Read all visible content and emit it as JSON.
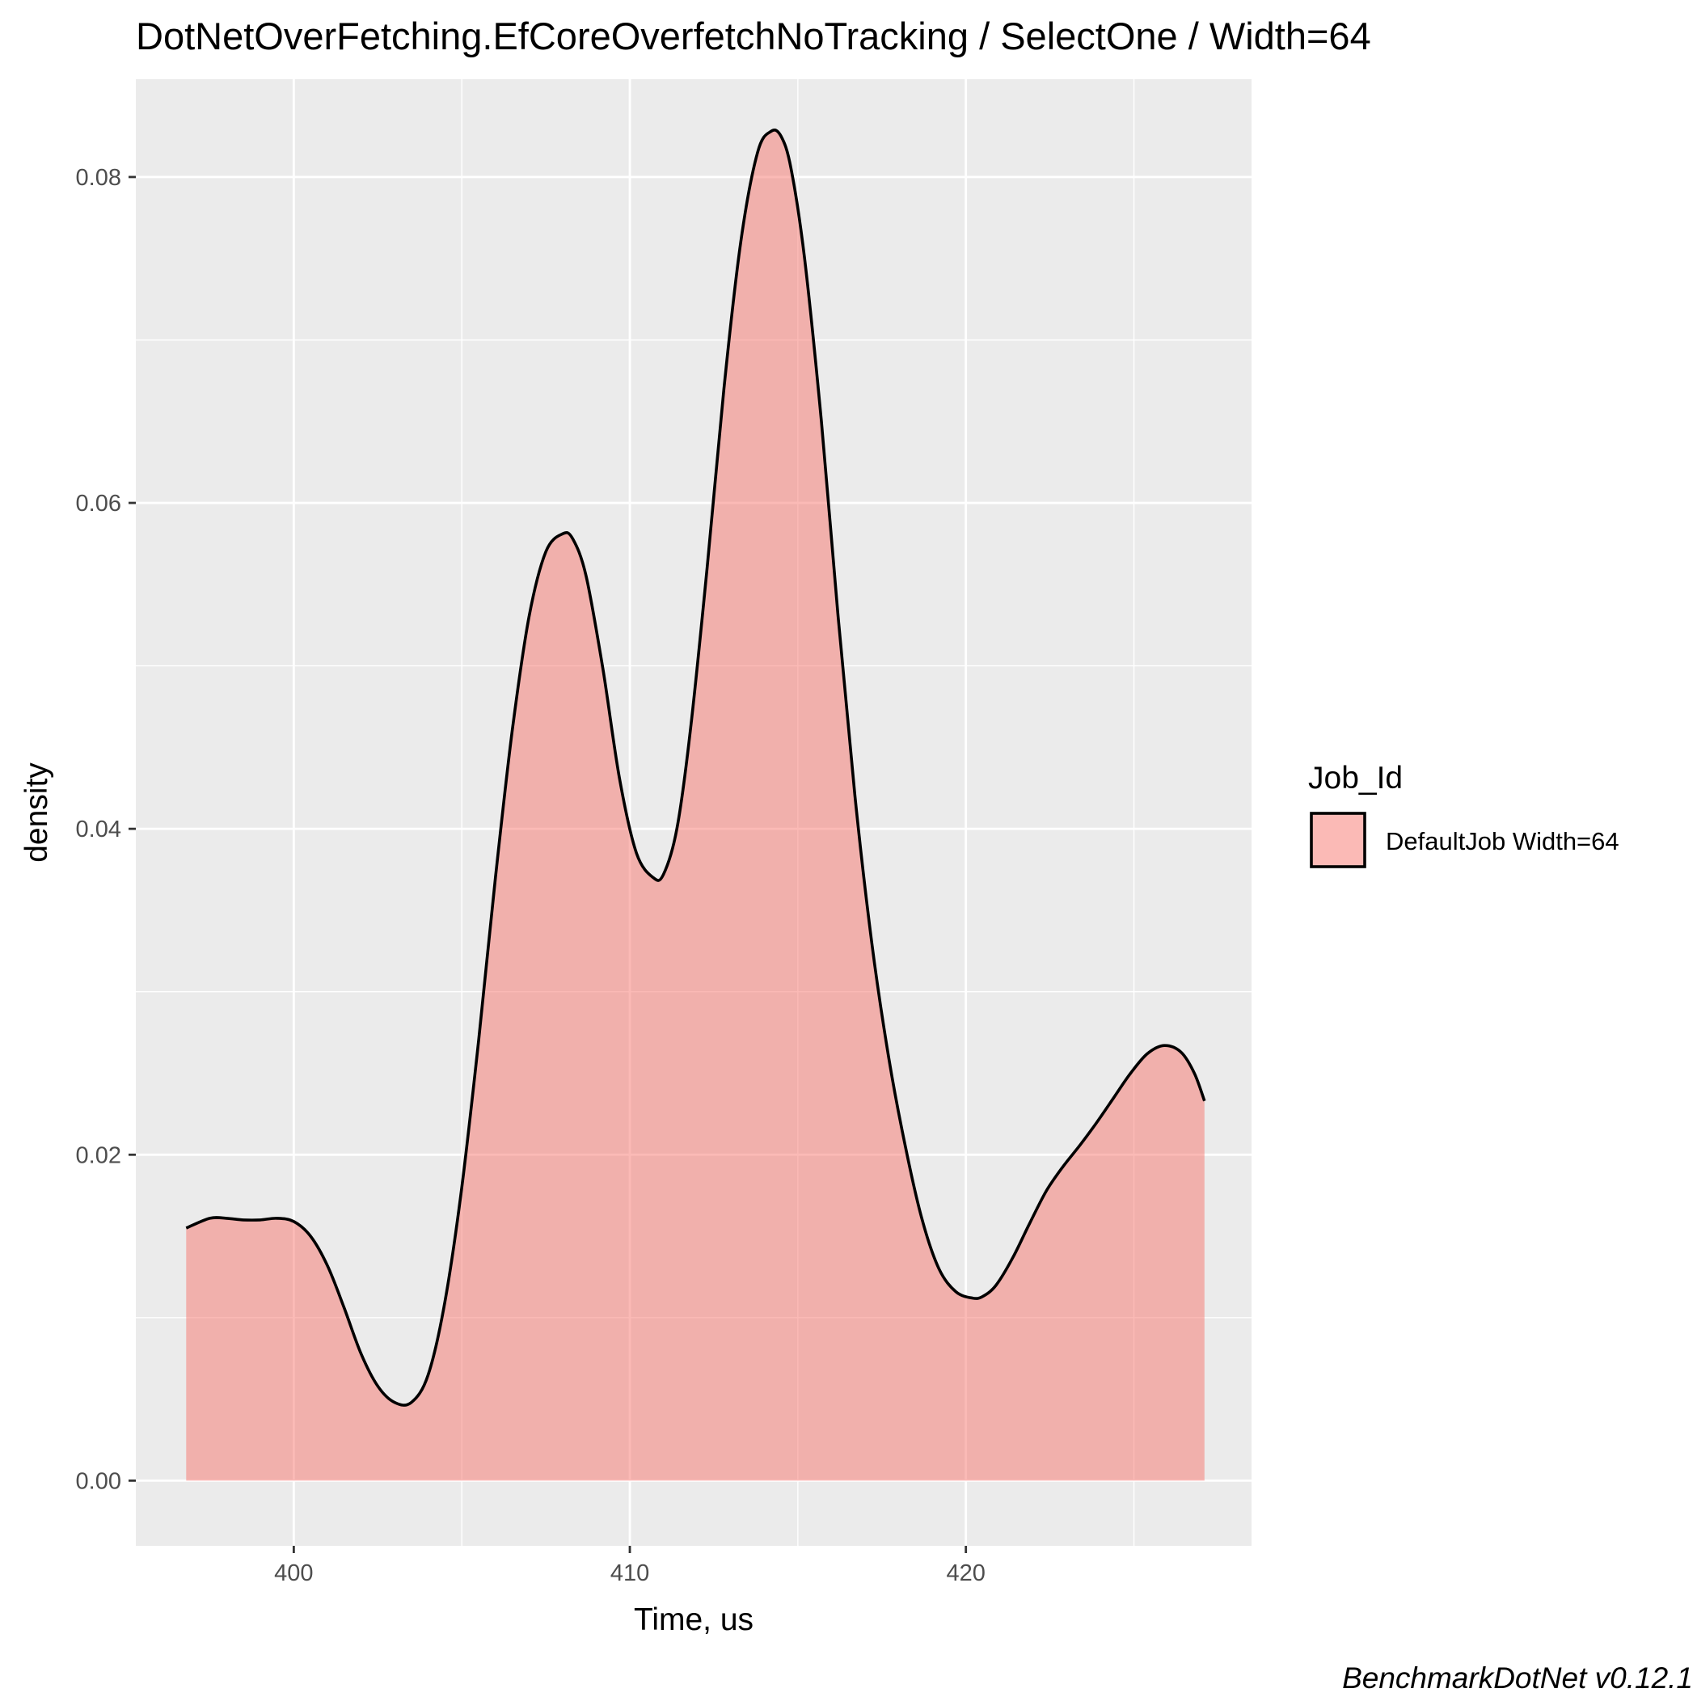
{
  "chart_data": {
    "type": "area",
    "title": "DotNetOverFetching.EfCoreOverfetchNoTracking / SelectOne / Width=64",
    "xlabel": "Time, us",
    "ylabel": "density",
    "xlim": [
      395.3,
      428.5
    ],
    "ylim": [
      -0.004,
      0.086
    ],
    "x_ticks": [
      400,
      410,
      420
    ],
    "x_tick_labels": [
      "400",
      "410",
      "420"
    ],
    "y_ticks": [
      0.0,
      0.02,
      0.04,
      0.06,
      0.08
    ],
    "y_tick_labels": [
      "0.00",
      "0.02",
      "0.04",
      "0.06",
      "0.08"
    ],
    "grid": true,
    "legend": {
      "title": "Job_Id",
      "position": "right",
      "entries": [
        {
          "label": "DefaultJob Width=64",
          "color": "#f8766d"
        }
      ]
    },
    "series": [
      {
        "name": "DefaultJob Width=64",
        "fill_color": "#f8766d",
        "fill_opacity": 0.5,
        "line_color": "#000000",
        "x": [
          396.8,
          397.5,
          398.0,
          398.5,
          399.0,
          399.5,
          400.0,
          400.5,
          401.0,
          401.5,
          402.0,
          402.5,
          403.0,
          403.5,
          404.0,
          404.5,
          405.0,
          405.5,
          406.0,
          406.5,
          407.0,
          407.5,
          408.0,
          408.3,
          408.7,
          409.2,
          409.7,
          410.2,
          410.7,
          411.0,
          411.4,
          411.8,
          412.3,
          412.8,
          413.3,
          413.8,
          414.2,
          414.5,
          414.8,
          415.2,
          415.7,
          416.2,
          416.7,
          417.2,
          417.7,
          418.2,
          418.7,
          419.2,
          419.7,
          420.2,
          420.5,
          420.9,
          421.4,
          421.9,
          422.4,
          422.9,
          423.4,
          423.9,
          424.4,
          424.9,
          425.4,
          425.9,
          426.4,
          426.8,
          427.1
        ],
        "y": [
          0.0155,
          0.0161,
          0.0161,
          0.016,
          0.016,
          0.0161,
          0.0159,
          0.015,
          0.0132,
          0.0106,
          0.0078,
          0.0058,
          0.0048,
          0.0048,
          0.0065,
          0.011,
          0.018,
          0.027,
          0.037,
          0.046,
          0.053,
          0.057,
          0.0581,
          0.0578,
          0.0555,
          0.0498,
          0.043,
          0.0385,
          0.037,
          0.0372,
          0.04,
          0.046,
          0.056,
          0.067,
          0.076,
          0.0815,
          0.0828,
          0.0825,
          0.0805,
          0.075,
          0.065,
          0.053,
          0.042,
          0.033,
          0.026,
          0.0205,
          0.016,
          0.013,
          0.0116,
          0.0112,
          0.0113,
          0.012,
          0.0137,
          0.0158,
          0.0178,
          0.0193,
          0.0206,
          0.022,
          0.0235,
          0.025,
          0.0262,
          0.0267,
          0.0263,
          0.025,
          0.0233
        ]
      }
    ],
    "caption": "BenchmarkDotNet v0.12.1"
  }
}
